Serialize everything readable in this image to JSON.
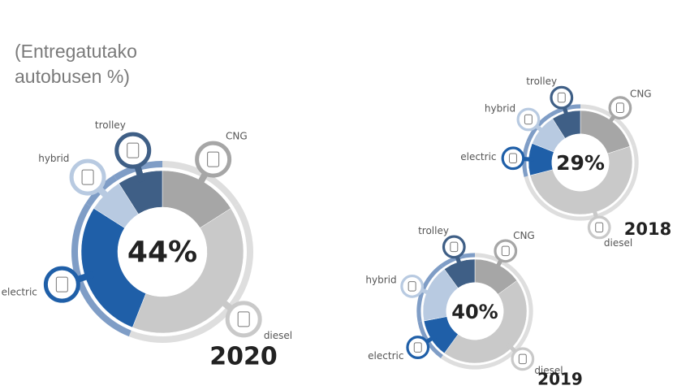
{
  "header": "(Entregatutako autobusen %)",
  "chart_data": [
    {
      "type": "donut",
      "title": "2020",
      "categories": [
        "CNG",
        "diesel",
        "electric",
        "hybrid",
        "trolley"
      ],
      "values": [
        16,
        40,
        28,
        7,
        9
      ],
      "colors": [
        "#a6a6a6",
        "#c9c9c9",
        "#1f5fa8",
        "#b8cae1",
        "#3f5f86"
      ],
      "ring_colors": [
        "#dedede",
        "#dedede",
        "#7f9dc6",
        "#7f9dc6",
        "#7f9dc6"
      ],
      "center": {
        "value": 44,
        "label": "44%"
      }
    },
    {
      "type": "donut",
      "title": "2018",
      "categories": [
        "CNG",
        "diesel",
        "electric",
        "hybrid",
        "trolley"
      ],
      "values": [
        20,
        51,
        10,
        10,
        9
      ],
      "colors": [
        "#a6a6a6",
        "#c9c9c9",
        "#1f5fa8",
        "#b8cae1",
        "#3f5f86"
      ],
      "ring_colors": [
        "#dedede",
        "#dedede",
        "#7f9dc6",
        "#7f9dc6",
        "#7f9dc6"
      ],
      "center": {
        "value": 29,
        "label": "29%"
      }
    },
    {
      "type": "donut",
      "title": "2019",
      "categories": [
        "CNG",
        "diesel",
        "electric",
        "hybrid",
        "trolley"
      ],
      "values": [
        15,
        45,
        12,
        18,
        10
      ],
      "colors": [
        "#a6a6a6",
        "#c9c9c9",
        "#1f5fa8",
        "#b8cae1",
        "#3f5f86"
      ],
      "ring_colors": [
        "#dedede",
        "#dedede",
        "#7f9dc6",
        "#7f9dc6",
        "#7f9dc6"
      ],
      "center": {
        "value": 40,
        "label": "40%"
      }
    }
  ]
}
